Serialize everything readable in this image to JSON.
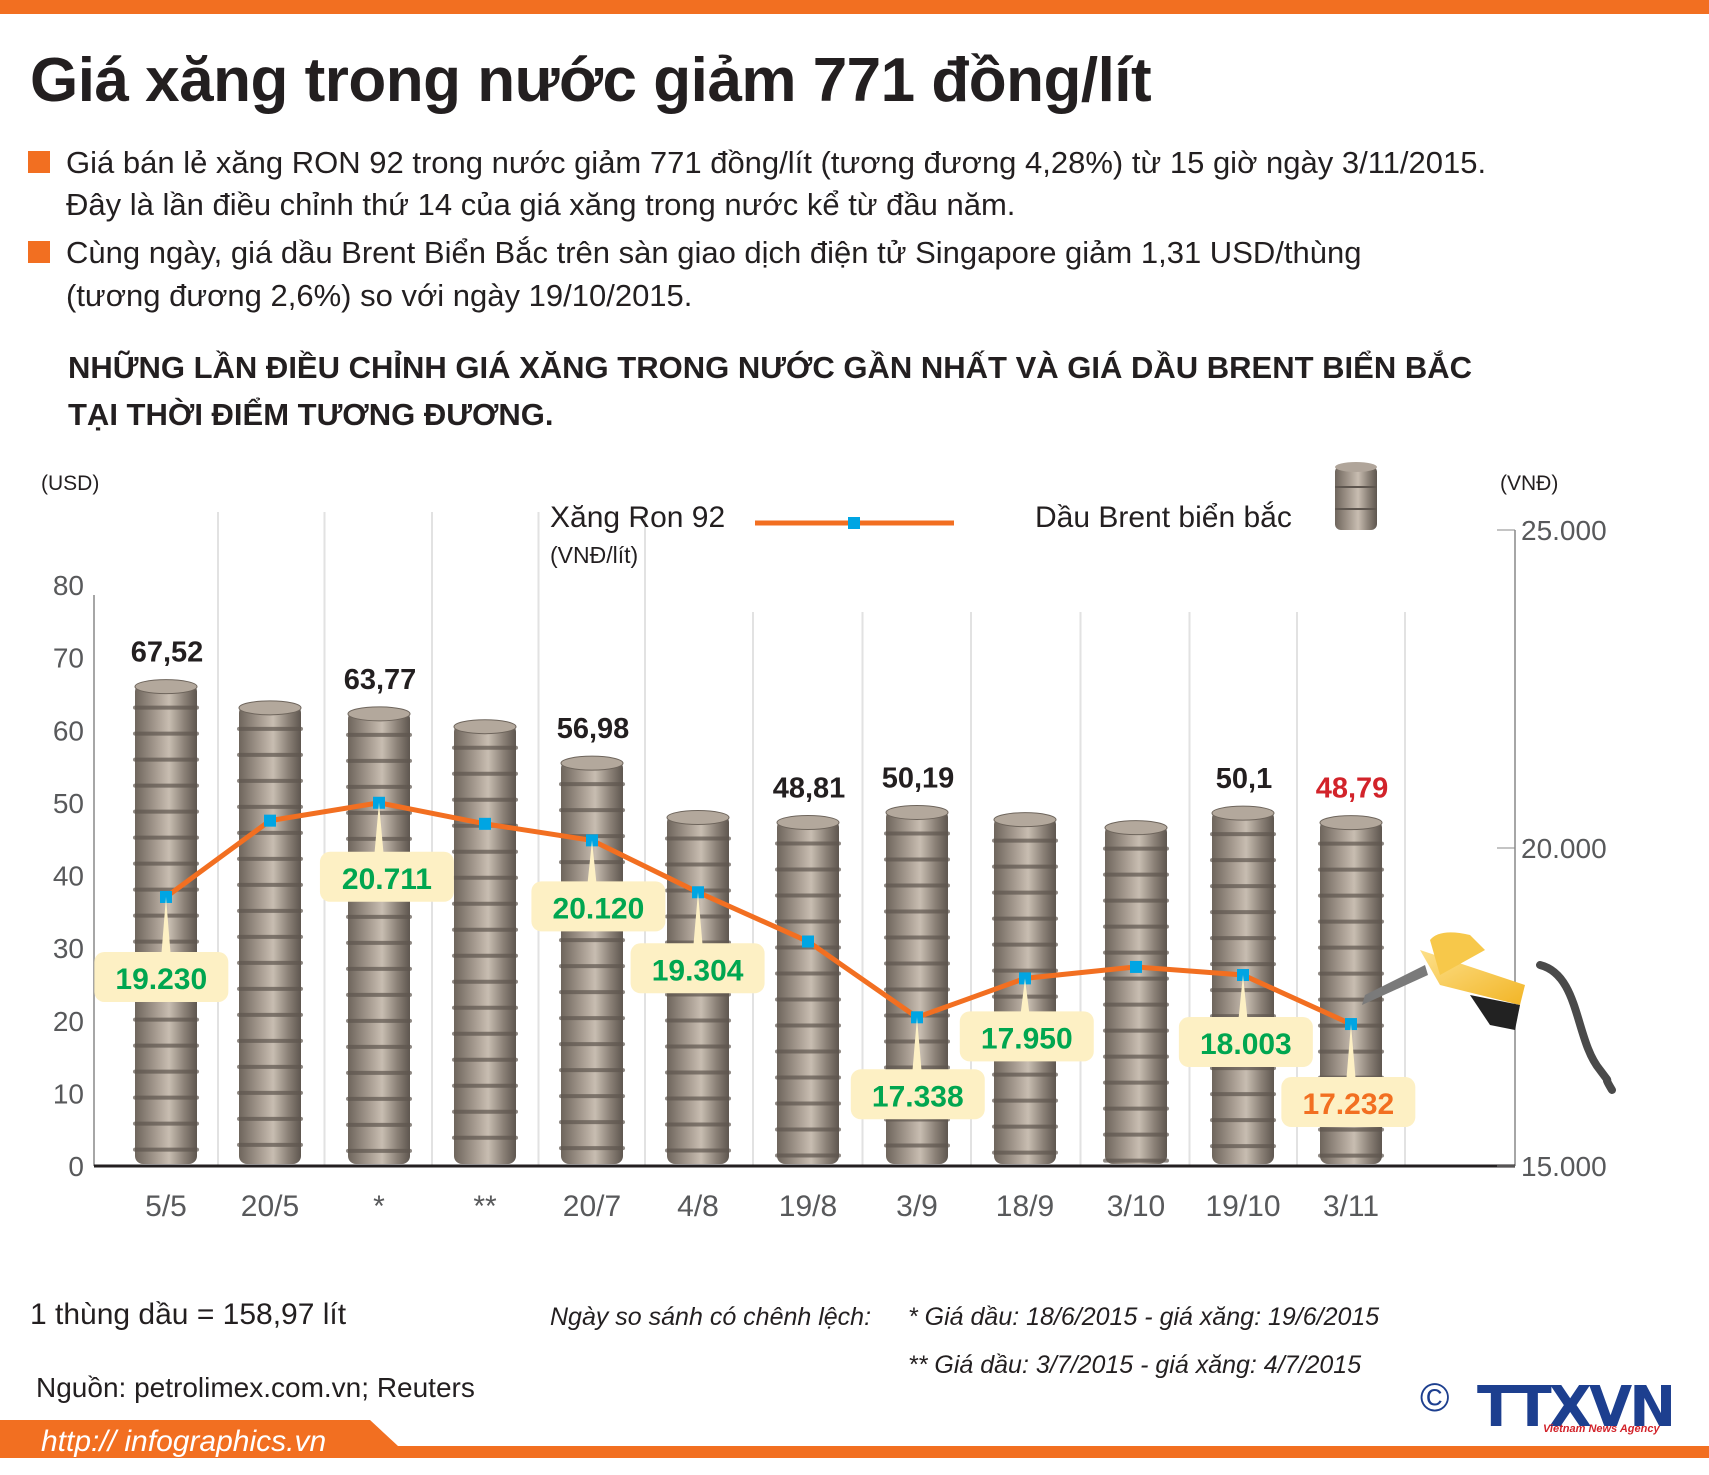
{
  "title": "Giá xăng trong nước giảm 771 đồng/lít",
  "bullets": [
    {
      "line1": "Giá bán lẻ xăng RON 92 trong nước giảm 771 đồng/lít (tương đương 4,28%) từ 15 giờ ngày 3/11/2015.",
      "line2": "Đây là lần điều chỉnh thứ 14 của giá xăng trong nước kể từ đầu năm."
    },
    {
      "line1": "Cùng ngày, giá dầu Brent Biển Bắc trên sàn giao dịch điện tử Singapore giảm 1,31 USD/thùng",
      "line2": "(tương đương 2,6%) so với ngày 19/10/2015."
    }
  ],
  "heading": {
    "line1": "NHỮNG LẦN ĐIỀU CHỈNH GIÁ XĂNG TRONG NƯỚC GẦN NHẤT VÀ GIÁ DẦU BRENT BIỂN BẮC",
    "line2": "TẠI THỜI ĐIỂM TƯƠNG ĐƯƠNG."
  },
  "colors": {
    "accent": "#f26f21",
    "marker": "#00a5e3",
    "green": "#00a650",
    "red": "#d2232a",
    "callout": "#fdf0c4",
    "barrel": "#8f857b"
  },
  "chart_data": {
    "type": "bar+line",
    "categories": [
      "5/5",
      "20/5",
      "*",
      "**",
      "20/7",
      "4/8",
      "19/8",
      "3/9",
      "18/9",
      "3/10",
      "19/10",
      "3/11"
    ],
    "left_axis": {
      "label": "(USD)",
      "ylim": [
        0,
        80
      ],
      "ticks": [
        "0",
        "10",
        "20",
        "30",
        "40",
        "50",
        "60",
        "70",
        "80"
      ]
    },
    "right_axis": {
      "label": "(VNĐ)",
      "ylim": [
        15000,
        25000
      ],
      "ticks": [
        "15.000",
        "20.000",
        "25.000"
      ]
    },
    "series": [
      {
        "name": "Dầu Brent biển bắc",
        "type": "bar",
        "axis": "left",
        "values": [
          67.52,
          64.6,
          63.77,
          62.0,
          56.98,
          49.5,
          48.81,
          50.19,
          49.2,
          48.1,
          50.1,
          48.79
        ],
        "labels": [
          "67,52",
          null,
          "63,77",
          null,
          "56,98",
          null,
          "48,81",
          "50,19",
          null,
          null,
          "50,1",
          "48,79"
        ]
      },
      {
        "name": "Xăng Ron 92",
        "unit": "(VNĐ/lít)",
        "type": "line",
        "axis": "right",
        "values": [
          19230,
          20430,
          20711,
          20380,
          20120,
          19304,
          18530,
          17338,
          17950,
          18130,
          18003,
          17232
        ],
        "labels": [
          "19.230",
          null,
          "20.711",
          null,
          "20.120",
          "19.304",
          null,
          "17.338",
          "17.950",
          null,
          "18.003",
          "17.232"
        ]
      }
    ],
    "legend": "top-center"
  },
  "footer": {
    "conversion": "1 thùng dầu = 158,97 lít",
    "note_label": "Ngày so sánh có chênh lệch:",
    "note1": "* Giá dầu: 18/6/2015 - giá xăng: 19/6/2015",
    "note2": "** Giá dầu: 3/7/2015 - giá xăng: 4/7/2015",
    "source": "Nguồn: petrolimex.com.vn; Reuters",
    "url": "http:// infographics.vn",
    "logo": "TTXVN",
    "logo_sub": "Vietnam News Agency",
    "copyright": "©"
  }
}
